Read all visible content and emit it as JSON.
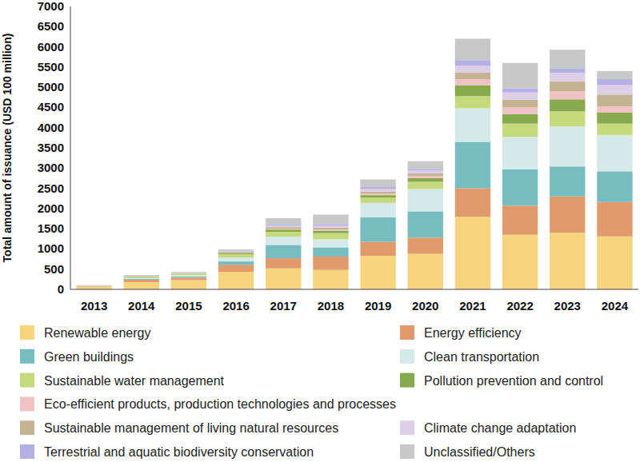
{
  "chart_data": {
    "type": "bar",
    "stacked": true,
    "grid": false,
    "legend": "bottom",
    "y_label": "Total amount of issuance (USD 100 million)",
    "categories": [
      "2013",
      "2014",
      "2015",
      "2016",
      "2017",
      "2018",
      "2019",
      "2020",
      "2021",
      "2022",
      "2023",
      "2024"
    ],
    "ylim": [
      0,
      7000
    ],
    "yticks": [
      0,
      500,
      1000,
      1500,
      2000,
      2500,
      3000,
      3500,
      4000,
      4500,
      5000,
      5500,
      6000,
      6500,
      7000
    ],
    "series": [
      {
        "name": "Renewable energy",
        "color": "#f6d47e",
        "values": [
          70,
          180,
          230,
          430,
          520,
          480,
          830,
          880,
          1800,
          1350,
          1400,
          1310
        ]
      },
      {
        "name": "Energy efficiency",
        "color": "#e09a6c",
        "values": [
          15,
          60,
          60,
          180,
          250,
          330,
          350,
          400,
          700,
          720,
          900,
          850
        ]
      },
      {
        "name": "Green buildings",
        "color": "#77bdc0",
        "values": [
          5,
          20,
          30,
          80,
          330,
          230,
          600,
          650,
          1150,
          900,
          740,
          760
        ]
      },
      {
        "name": "Clean transportation",
        "color": "#d5e9e8",
        "values": [
          5,
          20,
          30,
          100,
          200,
          200,
          360,
          550,
          830,
          800,
          990,
          900
        ]
      },
      {
        "name": "Sustainable water management",
        "color": "#c4da7d",
        "values": [
          0,
          30,
          30,
          80,
          120,
          150,
          130,
          180,
          300,
          330,
          370,
          280
        ]
      },
      {
        "name": "Pollution prevention and control",
        "color": "#86aa4c",
        "values": [
          0,
          10,
          10,
          30,
          60,
          60,
          60,
          90,
          270,
          230,
          300,
          270
        ]
      },
      {
        "name": "Eco-efficient products, production technologies and processes",
        "color": "#efc3c3",
        "values": [
          0,
          5,
          5,
          10,
          20,
          30,
          40,
          50,
          150,
          170,
          200,
          150
        ]
      },
      {
        "name": "Sustainable management of living natural resources",
        "color": "#c4b393",
        "values": [
          0,
          5,
          5,
          20,
          40,
          50,
          50,
          70,
          160,
          190,
          240,
          300
        ]
      },
      {
        "name": "Climate change adaptation",
        "color": "#dccfe6",
        "values": [
          0,
          5,
          5,
          20,
          40,
          40,
          60,
          70,
          170,
          180,
          220,
          230
        ]
      },
      {
        "name": "Terrestrial and aquatic biodiversity conservation",
        "color": "#b4b0e6",
        "values": [
          0,
          0,
          0,
          10,
          30,
          30,
          50,
          40,
          140,
          100,
          100,
          150
        ]
      },
      {
        "name": "Unclassified/Others",
        "color": "#c8c8c8",
        "values": [
          10,
          20,
          25,
          30,
          150,
          250,
          190,
          190,
          530,
          630,
          470,
          200
        ]
      }
    ]
  }
}
